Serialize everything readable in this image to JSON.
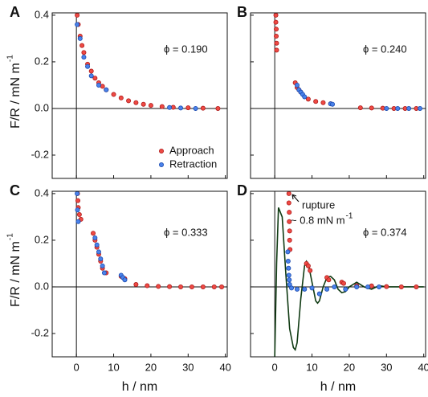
{
  "chart_data": [
    {
      "type": "scatter",
      "panel": "A",
      "annotations": [
        {
          "text": "ϕ = 0.190"
        }
      ],
      "y_label": {
        "text": "F/R / mN m",
        "sup": "-1"
      },
      "legend": "lower right",
      "xlim": [
        -6.5,
        40.5
      ],
      "ylim": [
        -0.3,
        0.41
      ],
      "xticks": [
        0,
        10,
        20,
        30,
        40
      ],
      "yticks": [
        -0.2,
        {
          "value": 0,
          "label": "0.0"
        },
        0.2,
        0.4
      ],
      "series": [
        {
          "name": "Approach",
          "color": "#ee4a44",
          "edgecolor": "#b01c1c",
          "style": "marker",
          "x": [
            0.2,
            0.5,
            1,
            1.5,
            2,
            3,
            4,
            5,
            6,
            7,
            8,
            10,
            12,
            14,
            16,
            18,
            20,
            23,
            26,
            30,
            34,
            38
          ],
          "values": [
            0.4,
            0.36,
            0.31,
            0.27,
            0.24,
            0.19,
            0.16,
            0.13,
            0.11,
            0.095,
            0.08,
            0.06,
            0.045,
            0.033,
            0.025,
            0.018,
            0.013,
            0.008,
            0.005,
            0.003,
            0.001,
            0.0
          ]
        },
        {
          "name": "Retraction",
          "color": "#4a82ea",
          "edgecolor": "#1c4cb0",
          "style": "marker",
          "x": [
            0.2,
            1,
            2,
            3,
            4,
            6,
            8,
            25,
            28,
            32
          ],
          "values": [
            0.36,
            0.3,
            0.22,
            0.18,
            0.14,
            0.1,
            0.08,
            0.004,
            0.002,
            0.0
          ]
        }
      ]
    },
    {
      "type": "scatter",
      "panel": "B",
      "annotations": [
        {
          "text": "ϕ = 0.240"
        }
      ],
      "xlim": [
        -6.5,
        40.5
      ],
      "ylim": [
        -0.3,
        0.41
      ],
      "xticks": [
        0,
        10,
        20,
        30,
        40
      ],
      "yticks": [
        -0.2,
        {
          "value": 0,
          "label": "0.0"
        },
        0.2,
        0.4
      ],
      "series": [
        {
          "color": "#ee4a44",
          "edgecolor": "#b01c1c",
          "style": "marker",
          "x": [
            0.3,
            0.3,
            0.4,
            0.4,
            0.5,
            0.5,
            5.5,
            6,
            6.5,
            7,
            9,
            11,
            13,
            15,
            23,
            26,
            29,
            32,
            35,
            38
          ],
          "values": [
            0.4,
            0.37,
            0.34,
            0.31,
            0.28,
            0.25,
            0.11,
            0.09,
            0.08,
            0.07,
            0.04,
            0.03,
            0.025,
            0.02,
            0.003,
            0.002,
            0.001,
            0.0,
            0.0,
            0.0
          ]
        },
        {
          "color": "#4a82ea",
          "edgecolor": "#1c4cb0",
          "style": "marker",
          "x": [
            6,
            6.5,
            7,
            7.5,
            8,
            15,
            15.5,
            30,
            33,
            36,
            39
          ],
          "values": [
            0.1,
            0.08,
            0.07,
            0.06,
            0.05,
            0.02,
            0.018,
            0.0,
            0.0,
            0.0,
            0.0
          ]
        }
      ]
    },
    {
      "type": "scatter",
      "panel": "C",
      "annotations": [
        {
          "text": "ϕ = 0.333"
        }
      ],
      "y_label": {
        "text": "F/R / mN m",
        "sup": "-1"
      },
      "x_label": "h / nm",
      "xlim": [
        -6.5,
        40.5
      ],
      "ylim": [
        -0.3,
        0.41
      ],
      "xticks": [
        0,
        10,
        20,
        30,
        40
      ],
      "yticks": [
        -0.2,
        {
          "value": 0,
          "label": "0.0"
        },
        0.2,
        0.4
      ],
      "series": [
        {
          "color": "#ee4a44",
          "edgecolor": "#b01c1c",
          "style": "marker",
          "x": [
            0.3,
            0.4,
            0.5,
            0.8,
            1.2,
            4.5,
            5,
            5.5,
            6,
            6.5,
            7,
            8,
            12,
            12.5,
            13,
            16,
            19,
            22,
            25,
            28,
            31,
            34,
            37,
            39
          ],
          "values": [
            0.4,
            0.37,
            0.34,
            0.31,
            0.29,
            0.23,
            0.2,
            0.17,
            0.14,
            0.11,
            0.08,
            0.06,
            0.045,
            0.04,
            0.035,
            0.01,
            0.005,
            0.002,
            0.001,
            0.0,
            0.0,
            0.0,
            0.0,
            0.0
          ]
        },
        {
          "color": "#4a82ea",
          "edgecolor": "#1c4cb0",
          "style": "marker",
          "x": [
            0.2,
            0.3,
            0.5,
            5,
            5.5,
            6,
            6.5,
            7,
            7.5,
            12,
            12.5,
            13
          ],
          "values": [
            0.4,
            0.33,
            0.28,
            0.21,
            0.18,
            0.15,
            0.12,
            0.09,
            0.06,
            0.05,
            0.04,
            0.03
          ]
        }
      ]
    },
    {
      "type": "scatter",
      "panel": "D",
      "annotations": [
        {
          "text": "ϕ = 0.374"
        },
        {
          "text": "rupture"
        },
        {
          "text": "~ 0.8 mN m",
          "sup": "-1"
        }
      ],
      "x_label": "h / nm",
      "xlim": [
        -6.5,
        40.5
      ],
      "ylim": [
        -0.3,
        0.41
      ],
      "xticks": [
        0,
        10,
        20,
        30,
        40
      ],
      "yticks": [
        -0.2,
        {
          "value": 0,
          "label": "0.0"
        },
        0.2,
        0.4
      ],
      "series": [
        {
          "color": "#0f3a12",
          "style": "line",
          "x": [
            0,
            0.5,
            1,
            2,
            3,
            4,
            5,
            5.5,
            6,
            7,
            8,
            8.5,
            9,
            10,
            11,
            11.5,
            12,
            13,
            14,
            15,
            16,
            17,
            18,
            19,
            20,
            22,
            24,
            26,
            28,
            30,
            33,
            36,
            40
          ],
          "values": [
            -0.3,
            0.1,
            0.34,
            0.3,
            0.05,
            -0.18,
            -0.26,
            -0.27,
            -0.24,
            -0.05,
            0.09,
            0.11,
            0.1,
            0.02,
            -0.06,
            -0.07,
            -0.06,
            0.0,
            0.04,
            0.045,
            0.03,
            -0.01,
            -0.025,
            -0.02,
            0.0,
            0.02,
            0.0,
            -0.01,
            0.005,
            0.0,
            0.0,
            0.0,
            0.0
          ]
        },
        {
          "color": "#ee4a44",
          "edgecolor": "#b01c1c",
          "style": "marker",
          "x": [
            3.8,
            3.8,
            3.9,
            3.9,
            4,
            4,
            4.1,
            8.5,
            9,
            9.5,
            14,
            14.5,
            18,
            18.5,
            22,
            26,
            30,
            34,
            38
          ],
          "values": [
            0.4,
            0.36,
            0.32,
            0.28,
            0.24,
            0.2,
            0.16,
            0.1,
            0.09,
            0.07,
            0.04,
            0.03,
            0.02,
            0.015,
            0.005,
            0.004,
            0.001,
            0.0,
            0.0
          ]
        },
        {
          "color": "#4a82ea",
          "edgecolor": "#1c4cb0",
          "style": "marker",
          "x": [
            3.5,
            3.6,
            3.7,
            3.8,
            3.9,
            4,
            4.5,
            6,
            8,
            10,
            12,
            14,
            16,
            19,
            22,
            25,
            28
          ],
          "values": [
            0.15,
            0.11,
            0.08,
            0.05,
            0.03,
            0.01,
            -0.005,
            -0.01,
            -0.01,
            -0.005,
            -0.03,
            -0.01,
            0.0,
            -0.01,
            0.0,
            0.0,
            0.0
          ]
        }
      ]
    }
  ]
}
